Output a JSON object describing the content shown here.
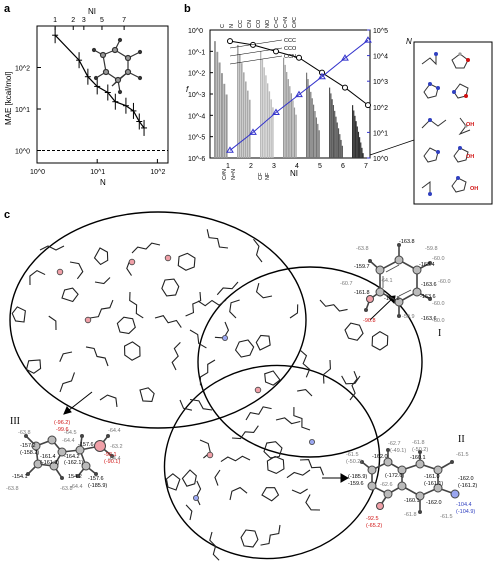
{
  "panels": {
    "a": {
      "letter": "a"
    },
    "b": {
      "letter": "b"
    },
    "c": {
      "letter": "c"
    }
  },
  "chart_data": [
    {
      "type": "line",
      "panel": "a",
      "xlabel": "N",
      "ylabel": "MAE [kcal/mol]",
      "top_xlabel": "NI",
      "xscale": "log",
      "yscale": "log",
      "xlim": [
        1,
        150
      ],
      "ylim": [
        0.5,
        1000
      ],
      "x_ticks": [
        "10^0",
        "10^1",
        "10^2"
      ],
      "y_ticks": [
        "10^0",
        "10^1",
        "10^2"
      ],
      "top_ticks": [
        "1",
        "2",
        "3",
        "5",
        "7"
      ],
      "x": [
        2,
        5,
        7,
        10,
        15,
        20,
        30,
        40,
        50,
        60
      ],
      "y": [
        600,
        150,
        60,
        35,
        25,
        15,
        12,
        9,
        5,
        3.5
      ],
      "reference_line_y": 1.0
    },
    {
      "type": "bar",
      "panel": "b",
      "xlabel": "NI",
      "ylabel_left": "f",
      "ylabel_right": "N",
      "categories": [
        "1",
        "2",
        "3",
        "4",
        "5",
        "6",
        "7"
      ],
      "left_ylim": [
        1e-06,
        1
      ],
      "right_ylim": [
        1,
        100000
      ],
      "left_ticks": [
        "10^0",
        "10^-1",
        "10^-2",
        "10^-3",
        "10^-4",
        "10^-5",
        "10^-6"
      ],
      "right_ticks": [
        "10^5",
        "10^4",
        "10^3",
        "10^2",
        "10^1",
        "10^0"
      ],
      "circle_series": [
        0.3,
        0.2,
        0.1,
        0.05,
        0.01,
        0.002,
        0.0003
      ],
      "triangle_series": [
        2,
        10,
        60,
        300,
        1500,
        8000,
        40000
      ],
      "top_annotations": [
        "C",
        "N",
        "CC",
        "CN",
        "CO",
        "NO",
        "C=C",
        "C=N",
        "C#C",
        "CCC",
        "CCO",
        "CCN"
      ],
      "bottom_annotations": [
        "C#N",
        "N=N",
        "CF",
        "NF"
      ]
    }
  ],
  "b_inset_atoms": [
    "OH",
    "OH",
    "OH"
  ],
  "molecules": {
    "I": {
      "label": "I",
      "values": [
        "-163.8",
        "-59.8",
        "-63.8",
        "-159.7",
        "-64.1",
        "-60.7",
        "-161.8",
        "-90.8",
        "-163.4",
        "-60.0",
        "-163.6",
        "-60.0",
        "-163.6",
        "-60.0",
        "-163.8",
        "-59.9",
        "-163.6",
        "-60.0"
      ]
    },
    "II": {
      "label": "II",
      "values": [
        "-62.7",
        "(-49.1)",
        "-61.5",
        "(-50.2)",
        "-162.0",
        "(-185.9)",
        "-159.6",
        "(-172.6)",
        "-62.6",
        "-61.8",
        "(-50.2)",
        "-160.1",
        "-161.0",
        "(-161.1)",
        "-61.5",
        "-162.0",
        "(-161.2)",
        "-160.1",
        "-162.0",
        "-104.4",
        "(-104.9)",
        "-61.8",
        "-61.5",
        "-92.5",
        "(-65.2)"
      ]
    },
    "III": {
      "label": "III",
      "values": [
        "-63.8",
        "-157.2",
        "(-158.2)",
        "-161.4",
        "(-161.8)",
        "-154.1",
        "154.2",
        "-63.8",
        "-63.8",
        "-64.5",
        "-157.6",
        "-64.4",
        "-164.2",
        "(-162.1)",
        "-92.1",
        "(-90.1)",
        "-63.2",
        "-64.4",
        "-64.4",
        "-157.6",
        "(-185.9)",
        "-64.4",
        "(-96.2)",
        "-99.6"
      ]
    }
  },
  "colors": {
    "pink_atom": "#f0a0a8",
    "blue_series": "#3333cc",
    "red_value": "#d01010",
    "blue_value": "#3040c0",
    "bar_gray": "#888888"
  }
}
